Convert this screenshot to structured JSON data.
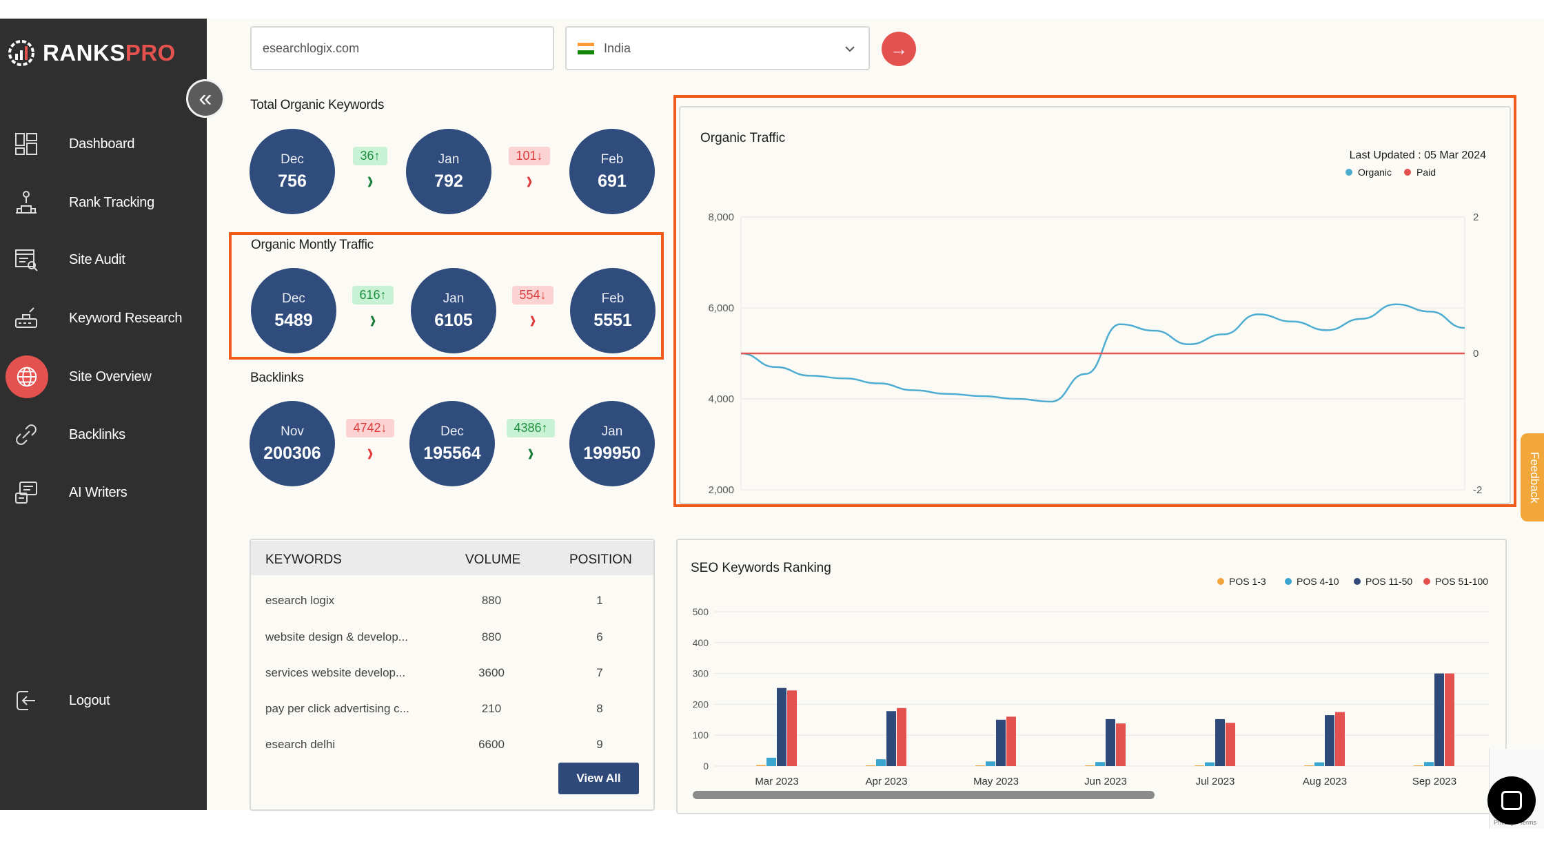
{
  "brand": {
    "name_main": "RANKS",
    "name_accent": "PRO",
    "accent_color": "#e4524f"
  },
  "sidebar": {
    "collapse_icon": "double-chevron-left-icon",
    "items": [
      {
        "label": "Dashboard",
        "icon": "dashboard-icon"
      },
      {
        "label": "Rank Tracking",
        "icon": "rank-tracking-icon"
      },
      {
        "label": "Site Audit",
        "icon": "site-audit-icon"
      },
      {
        "label": "Keyword Research",
        "icon": "keyword-research-icon"
      },
      {
        "label": "Site Overview",
        "icon": "globe-icon",
        "active": true
      },
      {
        "label": "Backlinks",
        "icon": "backlinks-icon"
      },
      {
        "label": "AI Writers",
        "icon": "ai-writer-icon"
      }
    ],
    "logout": {
      "label": "Logout",
      "icon": "logout-icon"
    }
  },
  "search": {
    "domain_value": "esearchlogix.com",
    "country_value": "India",
    "go_icon": "arrow-right-icon"
  },
  "metrics": {
    "keywords": {
      "title": "Total Organic Keywords",
      "months": [
        {
          "month": "Dec",
          "value": "756"
        },
        {
          "month": "Jan",
          "value": "792"
        },
        {
          "month": "Feb",
          "value": "691"
        }
      ],
      "deltas": [
        {
          "text": "36↑",
          "dir": "up"
        },
        {
          "text": "101↓",
          "dir": "down"
        }
      ]
    },
    "traffic": {
      "title": "Organic Montly Traffic",
      "months": [
        {
          "month": "Dec",
          "value": "5489"
        },
        {
          "month": "Jan",
          "value": "6105"
        },
        {
          "month": "Feb",
          "value": "5551"
        }
      ],
      "deltas": [
        {
          "text": "616↑",
          "dir": "up"
        },
        {
          "text": "554↓",
          "dir": "down"
        }
      ]
    },
    "backlinks": {
      "title": "Backlinks",
      "months": [
        {
          "month": "Nov",
          "value": "200306"
        },
        {
          "month": "Dec",
          "value": "195564"
        },
        {
          "month": "Jan",
          "value": "199950"
        }
      ],
      "deltas": [
        {
          "text": "4742↓",
          "dir": "down"
        },
        {
          "text": "4386↑",
          "dir": "up"
        }
      ]
    },
    "chevron": "›"
  },
  "keywords_table": {
    "headers": [
      "KEYWORDS",
      "VOLUME",
      "POSITION"
    ],
    "rows": [
      {
        "keyword": "esearch logix",
        "volume": "880",
        "position": "1"
      },
      {
        "keyword": "website design & develop...",
        "volume": "880",
        "position": "6"
      },
      {
        "keyword": "services website develop...",
        "volume": "3600",
        "position": "7"
      },
      {
        "keyword": "pay per click advertising c...",
        "volume": "210",
        "position": "8"
      },
      {
        "keyword": "esearch delhi",
        "volume": "6600",
        "position": "9"
      }
    ],
    "view_all_label": "View All"
  },
  "organic_chart": {
    "title": "Organic Traffic",
    "last_updated": "Last Updated : 05 Mar 2024",
    "legend": [
      {
        "name": "Organic",
        "color": "#4cadd0"
      },
      {
        "name": "Paid",
        "color": "#e4524f"
      }
    ]
  },
  "seo_chart": {
    "title": "SEO Keywords Ranking",
    "legend": [
      {
        "name": "POS 1-3",
        "color": "#f2a33a"
      },
      {
        "name": "POS 4-10",
        "color": "#3aa6cf"
      },
      {
        "name": "POS 11-50",
        "color": "#2f4a7a"
      },
      {
        "name": "POS 51-100",
        "color": "#e4524f"
      }
    ]
  },
  "chart_data": [
    {
      "type": "line",
      "title": "Organic Traffic",
      "y_left": {
        "ticks": [
          "8,000",
          "6,000",
          "4,000",
          "2,000"
        ],
        "range": [
          2000,
          8000
        ]
      },
      "y_right": {
        "ticks": [
          "2",
          "0",
          "-2"
        ],
        "range": [
          -2,
          2
        ]
      },
      "series": [
        {
          "name": "Organic",
          "axis": "left",
          "color": "#4cadd0",
          "values": [
            5000,
            4700,
            4510,
            4450,
            4340,
            4190,
            4110,
            4060,
            4000,
            3940,
            4550,
            5640,
            5500,
            5200,
            5420,
            5860,
            5700,
            5510,
            5760,
            6080,
            5920,
            5560
          ]
        },
        {
          "name": "Paid",
          "axis": "right",
          "color": "#e4524f",
          "values": [
            0,
            0,
            0,
            0,
            0,
            0,
            0,
            0,
            0,
            0,
            0,
            0,
            0,
            0,
            0,
            0,
            0,
            0,
            0,
            0,
            0,
            0
          ]
        }
      ]
    },
    {
      "type": "bar",
      "title": "SEO Keywords Ranking",
      "categories": [
        "Mar 2023",
        "Apr 2023",
        "May 2023",
        "Jun 2023",
        "Jul 2023",
        "Aug 2023",
        "Sep 2023"
      ],
      "ylim": [
        0,
        500
      ],
      "yticks": [
        "500",
        "400",
        "300",
        "200",
        "100",
        "0"
      ],
      "series": [
        {
          "name": "POS 1-3",
          "values": [
            3,
            2,
            2,
            2,
            2,
            2,
            2
          ]
        },
        {
          "name": "POS 4-10",
          "values": [
            27,
            22,
            15,
            13,
            12,
            12,
            13
          ]
        },
        {
          "name": "POS 11-50",
          "values": [
            253,
            178,
            150,
            152,
            152,
            165,
            300
          ]
        },
        {
          "name": "POS 51-100",
          "values": [
            245,
            188,
            160,
            138,
            140,
            175,
            300
          ]
        }
      ]
    }
  ]
}
